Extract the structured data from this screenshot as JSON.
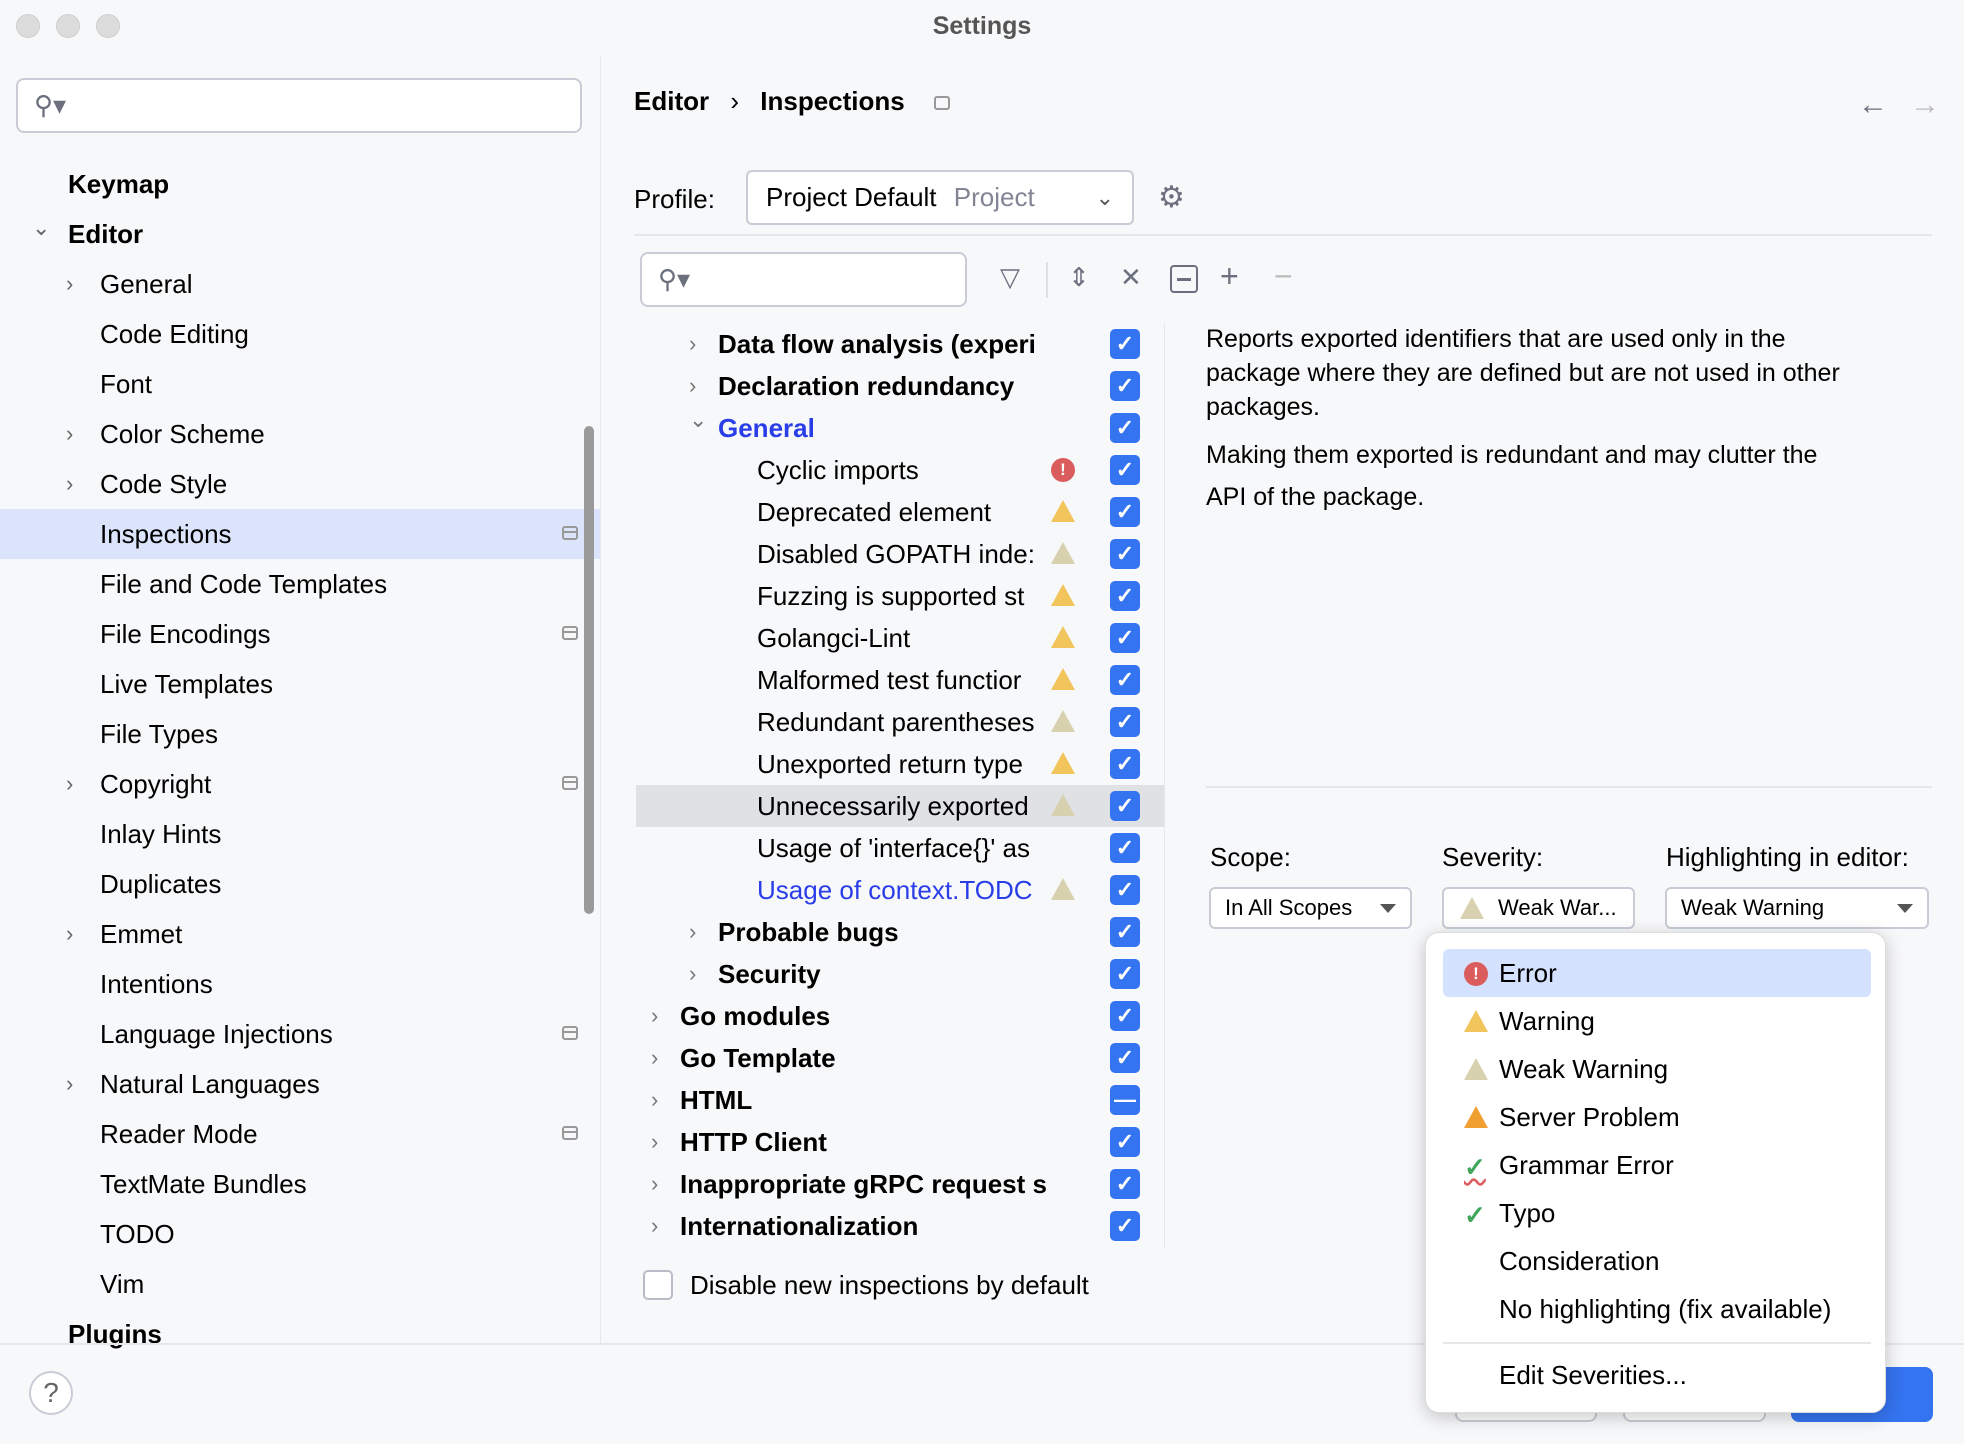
{
  "window": {
    "title": "Settings"
  },
  "sidebar": {
    "search_placeholder": "",
    "items": [
      {
        "label": "Keymap",
        "level": 0,
        "bold": true
      },
      {
        "label": "Editor",
        "level": 0,
        "bold": true,
        "expanded": true
      },
      {
        "label": "General",
        "level": 1,
        "chevron": true
      },
      {
        "label": "Code Editing",
        "level": 1
      },
      {
        "label": "Font",
        "level": 1
      },
      {
        "label": "Color Scheme",
        "level": 1,
        "chevron": true
      },
      {
        "label": "Code Style",
        "level": 1,
        "chevron": true
      },
      {
        "label": "Inspections",
        "level": 1,
        "selected": true,
        "pin": true
      },
      {
        "label": "File and Code Templates",
        "level": 1
      },
      {
        "label": "File Encodings",
        "level": 1,
        "pin": true
      },
      {
        "label": "Live Templates",
        "level": 1
      },
      {
        "label": "File Types",
        "level": 1
      },
      {
        "label": "Copyright",
        "level": 1,
        "chevron": true,
        "pin": true
      },
      {
        "label": "Inlay Hints",
        "level": 1
      },
      {
        "label": "Duplicates",
        "level": 1
      },
      {
        "label": "Emmet",
        "level": 1,
        "chevron": true
      },
      {
        "label": "Intentions",
        "level": 1
      },
      {
        "label": "Language Injections",
        "level": 1,
        "pin": true
      },
      {
        "label": "Natural Languages",
        "level": 1,
        "chevron": true
      },
      {
        "label": "Reader Mode",
        "level": 1,
        "pin": true
      },
      {
        "label": "TextMate Bundles",
        "level": 1
      },
      {
        "label": "TODO",
        "level": 1
      },
      {
        "label": "Vim",
        "level": 1
      },
      {
        "label": "Plugins",
        "level": 0,
        "bold": true
      }
    ]
  },
  "header": {
    "breadcrumb": [
      "Editor",
      "Inspections"
    ],
    "separator": "›"
  },
  "profile": {
    "label": "Profile:",
    "value": "Project Default",
    "scope": "Project"
  },
  "tree": {
    "search_placeholder": "",
    "rows": [
      {
        "label": "Data flow analysis (experi",
        "level": 2,
        "bold": true,
        "chevron": "right",
        "check": "on"
      },
      {
        "label": "Declaration redundancy",
        "level": 2,
        "bold": true,
        "chevron": "right",
        "check": "on"
      },
      {
        "label": "General",
        "level": 2,
        "bold": true,
        "chevron": "down",
        "check": "on",
        "color": "#2a3ee8"
      },
      {
        "label": "Cyclic imports",
        "level": 3,
        "icon": "error",
        "check": "on"
      },
      {
        "label": "Deprecated element",
        "level": 3,
        "icon": "warning",
        "check": "on"
      },
      {
        "label": "Disabled GOPATH inde:",
        "level": 3,
        "icon": "weak-warning",
        "check": "on"
      },
      {
        "label": "Fuzzing is supported st",
        "level": 3,
        "icon": "warning",
        "check": "on"
      },
      {
        "label": "Golangci-Lint",
        "level": 3,
        "icon": "warning",
        "check": "on"
      },
      {
        "label": "Malformed test functior",
        "level": 3,
        "icon": "warning",
        "check": "on"
      },
      {
        "label": "Redundant parentheses",
        "level": 3,
        "icon": "weak-warning",
        "check": "on"
      },
      {
        "label": "Unexported return type",
        "level": 3,
        "icon": "warning",
        "check": "on"
      },
      {
        "label": "Unnecessarily exported",
        "level": 3,
        "icon": "weak-warning",
        "check": "on",
        "selected": true
      },
      {
        "label": "Usage of 'interface{}' as",
        "level": 3,
        "check": "on"
      },
      {
        "label": "Usage of context.TODC",
        "level": 3,
        "icon": "weak-warning",
        "check": "on",
        "color": "#2a3ee8"
      },
      {
        "label": "Probable bugs",
        "level": 2,
        "bold": true,
        "chevron": "right",
        "check": "on"
      },
      {
        "label": "Security",
        "level": 2,
        "bold": true,
        "chevron": "right",
        "check": "on"
      },
      {
        "label": "Go modules",
        "level": 1,
        "bold": true,
        "chevron": "right",
        "check": "on"
      },
      {
        "label": "Go Template",
        "level": 1,
        "bold": true,
        "chevron": "right",
        "check": "on"
      },
      {
        "label": "HTML",
        "level": 1,
        "bold": true,
        "chevron": "right",
        "check": "partial"
      },
      {
        "label": "HTTP Client",
        "level": 1,
        "bold": true,
        "chevron": "right",
        "check": "on"
      },
      {
        "label": "Inappropriate gRPC request s",
        "level": 1,
        "bold": true,
        "chevron": "right",
        "check": "on"
      },
      {
        "label": "Internationalization",
        "level": 1,
        "bold": true,
        "chevron": "right",
        "check": "on"
      }
    ]
  },
  "disable_new": {
    "label": "Disable new inspections by default",
    "checked": false
  },
  "description": {
    "p1": [
      "Reports exported identifiers that are used only in the",
      "package where they are defined but are not used in other",
      "packages."
    ],
    "p2": [
      "Making them exported is redundant and may clutter the",
      "API of the package."
    ]
  },
  "options": {
    "scope_label": "Scope:",
    "scope_value": "In All Scopes",
    "severity_label": "Severity:",
    "severity_value": "Weak War...",
    "highlight_label": "Highlighting in editor:",
    "highlight_value": "Weak Warning"
  },
  "severity_menu": {
    "items": [
      {
        "label": "Error",
        "icon": "error",
        "selected": true
      },
      {
        "label": "Warning",
        "icon": "warning"
      },
      {
        "label": "Weak Warning",
        "icon": "weak-warning"
      },
      {
        "label": "Server Problem",
        "icon": "server-problem"
      },
      {
        "label": "Grammar Error",
        "icon": "grammar"
      },
      {
        "label": "Typo",
        "icon": "typo"
      },
      {
        "label": "Consideration",
        "icon": ""
      },
      {
        "label": "No highlighting (fix available)",
        "icon": ""
      }
    ],
    "edit": "Edit Severities..."
  },
  "colors": {
    "accent": "#3574f0",
    "link": "#2a3ee8",
    "selection": "#dbe4fb",
    "error": "#db5c5c",
    "warning": "#f2c55c"
  }
}
